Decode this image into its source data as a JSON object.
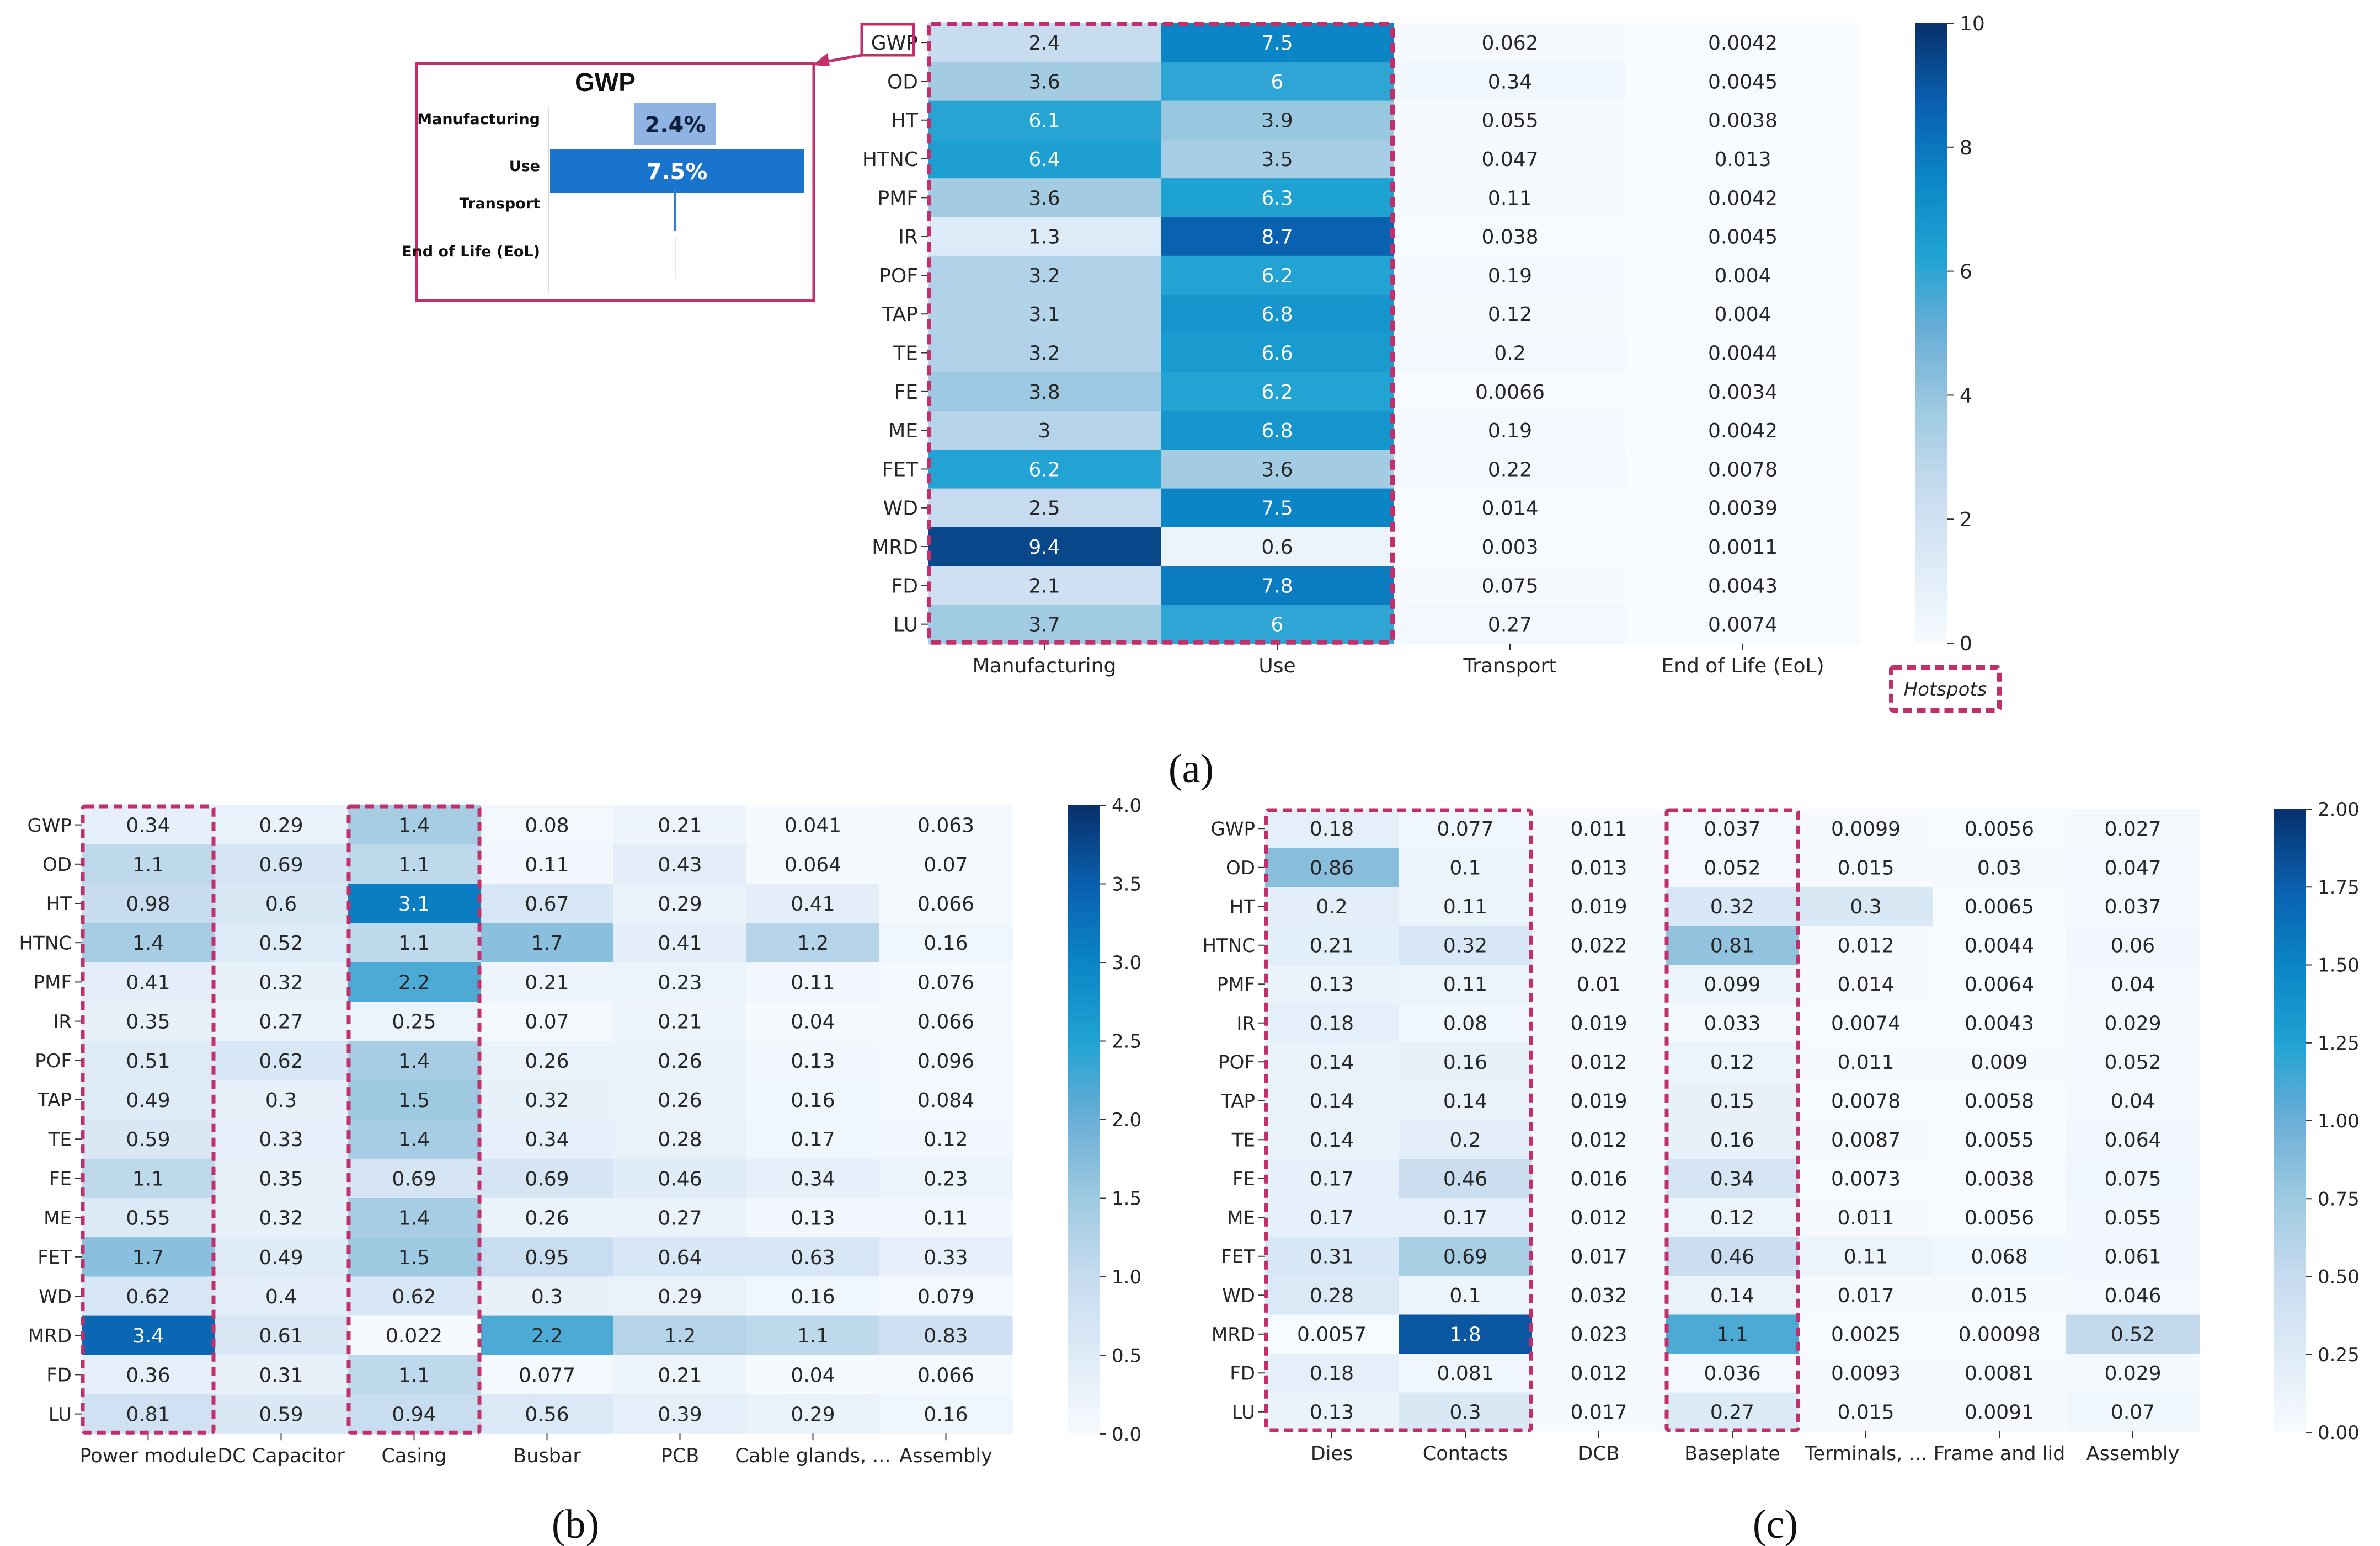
{
  "chart_data": [
    {
      "id": "a",
      "type": "heatmap",
      "panel_label": "(a)",
      "title": "",
      "rows": [
        "GWP",
        "OD",
        "HT",
        "HTNC",
        "PMF",
        "IR",
        "POF",
        "TAP",
        "TE",
        "FE",
        "ME",
        "FET",
        "WD",
        "MRD",
        "FD",
        "LU"
      ],
      "columns": [
        "Manufacturing",
        "Use",
        "Transport",
        "End of Life (EoL)"
      ],
      "values": [
        [
          "2.4",
          "7.5",
          "0.062",
          "0.0042"
        ],
        [
          "3.6",
          "6",
          "0.34",
          "0.0045"
        ],
        [
          "6.1",
          "3.9",
          "0.055",
          "0.0038"
        ],
        [
          "6.4",
          "3.5",
          "0.047",
          "0.013"
        ],
        [
          "3.6",
          "6.3",
          "0.11",
          "0.0042"
        ],
        [
          "1.3",
          "8.7",
          "0.038",
          "0.0045"
        ],
        [
          "3.2",
          "6.2",
          "0.19",
          "0.004"
        ],
        [
          "3.1",
          "6.8",
          "0.12",
          "0.004"
        ],
        [
          "3.2",
          "6.6",
          "0.2",
          "0.0044"
        ],
        [
          "3.8",
          "6.2",
          "0.0066",
          "0.0034"
        ],
        [
          "3",
          "6.8",
          "0.19",
          "0.0042"
        ],
        [
          "6.2",
          "3.6",
          "0.22",
          "0.0078"
        ],
        [
          "2.5",
          "7.5",
          "0.014",
          "0.0039"
        ],
        [
          "9.4",
          "0.6",
          "0.003",
          "0.0011"
        ],
        [
          "2.1",
          "7.8",
          "0.075",
          "0.0043"
        ],
        [
          "3.7",
          "6",
          "0.27",
          "0.0074"
        ]
      ],
      "vmin": 0,
      "vmax": 10,
      "colorbar_ticks": [
        "0",
        "2",
        "4",
        "6",
        "8",
        "10"
      ],
      "hotspot_columns": [
        0,
        1
      ],
      "hotspot_label": "Hotspots",
      "highlight_row_label": "GWP",
      "inset": {
        "type": "bar",
        "orientation": "horizontal",
        "title": "GWP",
        "categories": [
          "Manufacturing",
          "Use",
          "Transport",
          "End of Life (EoL)"
        ],
        "values": [
          2.4,
          7.5,
          0.062,
          0.0042
        ],
        "value_labels": [
          "2.4%",
          "7.5%",
          "",
          ""
        ],
        "colors": [
          "#8FB4E3",
          "#1874CD",
          "#1874CD",
          "#1874CD"
        ]
      }
    },
    {
      "id": "b",
      "type": "heatmap",
      "panel_label": "(b)",
      "rows": [
        "GWP",
        "OD",
        "HT",
        "HTNC",
        "PMF",
        "IR",
        "POF",
        "TAP",
        "TE",
        "FE",
        "ME",
        "FET",
        "WD",
        "MRD",
        "FD",
        "LU"
      ],
      "columns": [
        "Power module",
        "DC Capacitor",
        "Casing",
        "Busbar",
        "PCB",
        "Cable glands, ...",
        "Assembly"
      ],
      "values": [
        [
          "0.34",
          "0.29",
          "1.4",
          "0.08",
          "0.21",
          "0.041",
          "0.063"
        ],
        [
          "1.1",
          "0.69",
          "1.1",
          "0.11",
          "0.43",
          "0.064",
          "0.07"
        ],
        [
          "0.98",
          "0.6",
          "3.1",
          "0.67",
          "0.29",
          "0.41",
          "0.066"
        ],
        [
          "1.4",
          "0.52",
          "1.1",
          "1.7",
          "0.41",
          "1.2",
          "0.16"
        ],
        [
          "0.41",
          "0.32",
          "2.2",
          "0.21",
          "0.23",
          "0.11",
          "0.076"
        ],
        [
          "0.35",
          "0.27",
          "0.25",
          "0.07",
          "0.21",
          "0.04",
          "0.066"
        ],
        [
          "0.51",
          "0.62",
          "1.4",
          "0.26",
          "0.26",
          "0.13",
          "0.096"
        ],
        [
          "0.49",
          "0.3",
          "1.5",
          "0.32",
          "0.26",
          "0.16",
          "0.084"
        ],
        [
          "0.59",
          "0.33",
          "1.4",
          "0.34",
          "0.28",
          "0.17",
          "0.12"
        ],
        [
          "1.1",
          "0.35",
          "0.69",
          "0.69",
          "0.46",
          "0.34",
          "0.23"
        ],
        [
          "0.55",
          "0.32",
          "1.4",
          "0.26",
          "0.27",
          "0.13",
          "0.11"
        ],
        [
          "1.7",
          "0.49",
          "1.5",
          "0.95",
          "0.64",
          "0.63",
          "0.33"
        ],
        [
          "0.62",
          "0.4",
          "0.62",
          "0.3",
          "0.29",
          "0.16",
          "0.079"
        ],
        [
          "3.4",
          "0.61",
          "0.022",
          "2.2",
          "1.2",
          "1.1",
          "0.83"
        ],
        [
          "0.36",
          "0.31",
          "1.1",
          "0.077",
          "0.21",
          "0.04",
          "0.066"
        ],
        [
          "0.81",
          "0.59",
          "0.94",
          "0.56",
          "0.39",
          "0.29",
          "0.16"
        ]
      ],
      "vmin": 0,
      "vmax": 4,
      "colorbar_ticks": [
        "0.0",
        "0.5",
        "1.0",
        "1.5",
        "2.0",
        "2.5",
        "3.0",
        "3.5",
        "4.0"
      ],
      "hotspot_columns": [
        0,
        2
      ]
    },
    {
      "id": "c",
      "type": "heatmap",
      "panel_label": "(c)",
      "rows": [
        "GWP",
        "OD",
        "HT",
        "HTNC",
        "PMF",
        "IR",
        "POF",
        "TAP",
        "TE",
        "FE",
        "ME",
        "FET",
        "WD",
        "MRD",
        "FD",
        "LU"
      ],
      "columns": [
        "Dies",
        "Contacts",
        "DCB",
        "Baseplate",
        "Terminals, ...",
        "Frame and lid",
        "Assembly"
      ],
      "values": [
        [
          "0.18",
          "0.077",
          "0.011",
          "0.037",
          "0.0099",
          "0.0056",
          "0.027"
        ],
        [
          "0.86",
          "0.1",
          "0.013",
          "0.052",
          "0.015",
          "0.03",
          "0.047"
        ],
        [
          "0.2",
          "0.11",
          "0.019",
          "0.32",
          "0.3",
          "0.0065",
          "0.037"
        ],
        [
          "0.21",
          "0.32",
          "0.022",
          "0.81",
          "0.012",
          "0.0044",
          "0.06"
        ],
        [
          "0.13",
          "0.11",
          "0.01",
          "0.099",
          "0.014",
          "0.0064",
          "0.04"
        ],
        [
          "0.18",
          "0.08",
          "0.019",
          "0.033",
          "0.0074",
          "0.0043",
          "0.029"
        ],
        [
          "0.14",
          "0.16",
          "0.012",
          "0.12",
          "0.011",
          "0.009",
          "0.052"
        ],
        [
          "0.14",
          "0.14",
          "0.019",
          "0.15",
          "0.0078",
          "0.0058",
          "0.04"
        ],
        [
          "0.14",
          "0.2",
          "0.012",
          "0.16",
          "0.0087",
          "0.0055",
          "0.064"
        ],
        [
          "0.17",
          "0.46",
          "0.016",
          "0.34",
          "0.0073",
          "0.0038",
          "0.075"
        ],
        [
          "0.17",
          "0.17",
          "0.012",
          "0.12",
          "0.011",
          "0.0056",
          "0.055"
        ],
        [
          "0.31",
          "0.69",
          "0.017",
          "0.46",
          "0.11",
          "0.068",
          "0.061"
        ],
        [
          "0.28",
          "0.1",
          "0.032",
          "0.14",
          "0.017",
          "0.015",
          "0.046"
        ],
        [
          "0.0057",
          "1.8",
          "0.023",
          "1.1",
          "0.0025",
          "0.00098",
          "0.52"
        ],
        [
          "0.18",
          "0.081",
          "0.012",
          "0.036",
          "0.0093",
          "0.0081",
          "0.029"
        ],
        [
          "0.13",
          "0.3",
          "0.017",
          "0.27",
          "0.015",
          "0.0091",
          "0.07"
        ]
      ],
      "vmin": 0,
      "vmax": 2,
      "colorbar_ticks": [
        "0.00",
        "0.25",
        "0.50",
        "0.75",
        "1.00",
        "1.25",
        "1.50",
        "1.75",
        "2.00"
      ],
      "hotspot_columns": [
        0,
        1,
        3
      ]
    }
  ],
  "colors": {
    "cmap": [
      "#f7fbff",
      "#deebf7",
      "#c6dbef",
      "#9ecae1",
      "#6baed6",
      "#1fa3d3",
      "#0b85c6",
      "#0a5fae",
      "#08306b"
    ],
    "hotspot_border": "#C2306C",
    "inset_border": "#C2306C"
  }
}
